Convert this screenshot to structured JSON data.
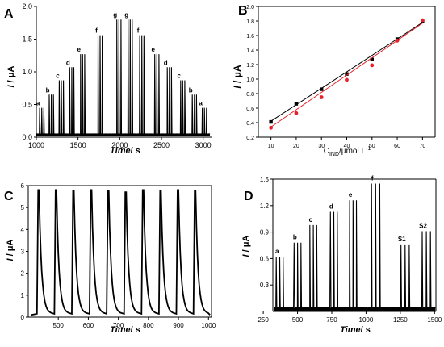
{
  "chart_data": [
    {
      "panel": "A",
      "type": "line",
      "xlabel_main": "Time",
      "xlabel_unit": "/ s",
      "ylabel_main": "I",
      "ylabel_unit": " / μA",
      "xlim": [
        1000,
        3100
      ],
      "ylim": [
        0,
        2.0
      ],
      "xticks": [
        "1000",
        "1500",
        "2000",
        "2500",
        "3000"
      ],
      "yticks": [
        "0.0",
        "0.5",
        "1.0",
        "1.5",
        "2.0"
      ],
      "peaks": [
        {
          "label": "a",
          "x": [
            1040,
            1065,
            1090
          ],
          "value": 0.45
        },
        {
          "label": "b",
          "x": [
            1155,
            1180,
            1205
          ],
          "value": 0.65
        },
        {
          "label": "c",
          "x": [
            1275,
            1300,
            1325
          ],
          "value": 0.87
        },
        {
          "label": "d",
          "x": [
            1400,
            1425,
            1450
          ],
          "value": 1.07
        },
        {
          "label": "e",
          "x": [
            1530,
            1555,
            1580
          ],
          "value": 1.27
        },
        {
          "label": "f",
          "x": [
            1740,
            1765,
            1790
          ],
          "value": 1.56
        },
        {
          "label": "g",
          "x": [
            1965,
            1990,
            2015
          ],
          "value": 1.8
        },
        {
          "label": "g",
          "x": [
            2100,
            2125,
            2150
          ],
          "value": 1.8
        },
        {
          "label": "f",
          "x": [
            2240,
            2265,
            2290
          ],
          "value": 1.56
        },
        {
          "label": "e",
          "x": [
            2420,
            2445,
            2470
          ],
          "value": 1.27
        },
        {
          "label": "d",
          "x": [
            2570,
            2595,
            2620
          ],
          "value": 1.07
        },
        {
          "label": "c",
          "x": [
            2730,
            2755,
            2780
          ],
          "value": 0.87
        },
        {
          "label": "b",
          "x": [
            2870,
            2895,
            2920
          ],
          "value": 0.65
        },
        {
          "label": "a",
          "x": [
            2990,
            3015,
            3040
          ],
          "value": 0.45
        }
      ]
    },
    {
      "panel": "B",
      "type": "scatter",
      "xlabel": "C",
      "xlabel_sub": "IND",
      "xlabel_unit": "/μmol L",
      "xlabel_sup": "-1",
      "ylabel_main": "I",
      "ylabel_unit": " / μA",
      "xlim": [
        5,
        75
      ],
      "ylim": [
        0.2,
        2.0
      ],
      "xticks": [
        "10",
        "20",
        "30",
        "40",
        "50",
        "60",
        "70"
      ],
      "yticks": [
        "0.2",
        "0.4",
        "0.6",
        "0.8",
        "1.0",
        "1.2",
        "1.4",
        "1.6",
        "1.8",
        "2.0"
      ],
      "series": [
        {
          "color": "#000000",
          "x": [
            10,
            20,
            30,
            40,
            50,
            60,
            70
          ],
          "values": [
            0.41,
            0.66,
            0.86,
            1.07,
            1.27,
            1.55,
            1.8
          ],
          "fit": [
            0.42,
            1.78
          ]
        },
        {
          "color": "#e8202a",
          "x": [
            10,
            20,
            30,
            40,
            50,
            60,
            70
          ],
          "values": [
            0.33,
            0.53,
            0.75,
            0.99,
            1.19,
            1.53,
            1.81
          ],
          "fit": [
            0.34,
            1.77
          ]
        }
      ]
    },
    {
      "panel": "C",
      "type": "line",
      "xlabel_main": "Time",
      "xlabel_unit": "/ s",
      "ylabel_main": "I",
      "ylabel_unit": " / μA",
      "xlim": [
        400,
        1010
      ],
      "ylim": [
        0,
        6
      ],
      "xticks": [
        "500",
        "600",
        "700",
        "800",
        "900",
        "1000"
      ],
      "yticks": [
        "0",
        "1",
        "2",
        "3",
        "4",
        "5",
        "6"
      ],
      "peaks": [
        {
          "x": 435,
          "value": 5.8
        },
        {
          "x": 493,
          "value": 5.8
        },
        {
          "x": 551,
          "value": 5.75
        },
        {
          "x": 610,
          "value": 5.8
        },
        {
          "x": 667,
          "value": 5.75
        },
        {
          "x": 725,
          "value": 5.7
        },
        {
          "x": 783,
          "value": 5.8
        },
        {
          "x": 841,
          "value": 5.75
        },
        {
          "x": 899,
          "value": 5.8
        },
        {
          "x": 956,
          "value": 5.75
        }
      ]
    },
    {
      "panel": "D",
      "type": "line",
      "xlabel_main": "Time",
      "xlabel_unit": "/ s",
      "ylabel_main": "I",
      "ylabel_unit": " / μA",
      "xlim": [
        320,
        1510
      ],
      "ylim": [
        0,
        1.5
      ],
      "xticks": [
        "250",
        "500",
        "750",
        "1000",
        "1250",
        "1500"
      ],
      "yticks": [
        "0.3",
        "0.6",
        "0.9",
        "1.2",
        "1.5"
      ],
      "peaks": [
        {
          "label": "a",
          "x": [
            345,
            370,
            395
          ],
          "value": 0.62
        },
        {
          "label": "b",
          "x": [
            475,
            500,
            525
          ],
          "value": 0.78
        },
        {
          "label": "c",
          "x": [
            590,
            615,
            640
          ],
          "value": 0.98
        },
        {
          "label": "d",
          "x": [
            740,
            765,
            790
          ],
          "value": 1.13
        },
        {
          "label": "e",
          "x": [
            880,
            905,
            930
          ],
          "value": 1.26
        },
        {
          "label": "f",
          "x": [
            1040,
            1070,
            1100
          ],
          "value": 1.45
        },
        {
          "label": "S1",
          "x": [
            1255,
            1285,
            1315
          ],
          "value": 0.76
        },
        {
          "label": "S2",
          "x": [
            1410,
            1440,
            1470
          ],
          "value": 0.91
        }
      ]
    }
  ]
}
